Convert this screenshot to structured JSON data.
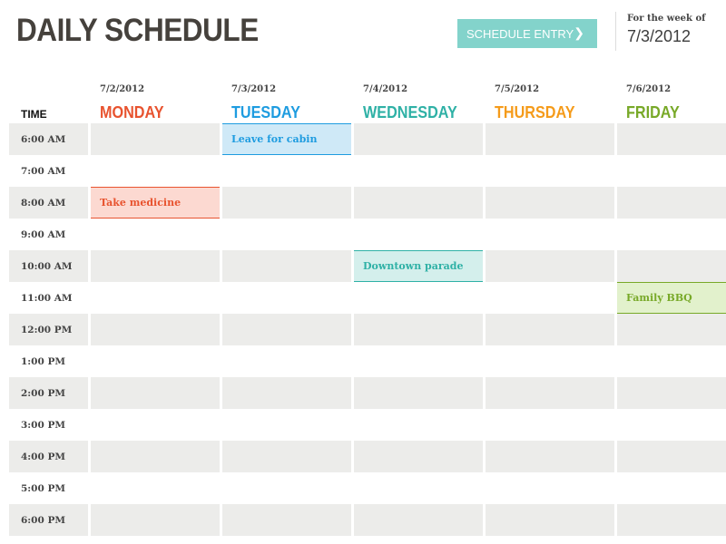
{
  "header": {
    "title": "DAILY SCHEDULE",
    "button_label": "SCHEDULE ENTRY",
    "button_icon": "chevron-right-icon",
    "week_label": "For the week of",
    "week_date": "7/3/2012"
  },
  "columns": {
    "time_header": "TIME",
    "days": [
      {
        "name": "MONDAY",
        "date": "7/2/2012",
        "color": "#e8532f"
      },
      {
        "name": "TUESDAY",
        "date": "7/3/2012",
        "color": "#1e9ce0"
      },
      {
        "name": "WEDNESDAY",
        "date": "7/4/2012",
        "color": "#2fb1a6"
      },
      {
        "name": "THURSDAY",
        "date": "7/5/2012",
        "color": "#f59b1a"
      },
      {
        "name": "FRIDAY",
        "date": "7/6/2012",
        "color": "#78a928"
      }
    ]
  },
  "times": [
    "6:00 AM",
    "7:00 AM",
    "8:00 AM",
    "9:00 AM",
    "10:00 AM",
    "11:00 AM",
    "12:00 PM",
    "1:00 PM",
    "2:00 PM",
    "3:00 PM",
    "4:00 PM",
    "5:00 PM",
    "6:00 PM"
  ],
  "events": [
    {
      "day": 1,
      "time": 0,
      "text": "Leave for cabin",
      "color": "#1e9ce0",
      "bg": "#cfe9f7"
    },
    {
      "day": 0,
      "time": 2,
      "text": "Take medicine",
      "color": "#e8532f",
      "bg": "#fcd9d1"
    },
    {
      "day": 2,
      "time": 4,
      "text": "Downtown parade",
      "color": "#2fb1a6",
      "bg": "#d4efec"
    },
    {
      "day": 4,
      "time": 5,
      "text": "Family BBQ",
      "color": "#78a928",
      "bg": "#e2f1cc"
    }
  ]
}
